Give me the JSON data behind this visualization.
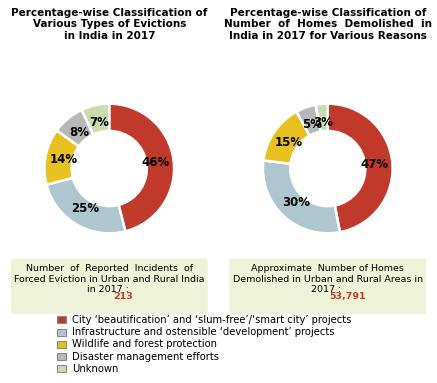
{
  "chart1": {
    "title": "Percentage-wise Classification of\nVarious Types of Evictions\nin India in 2017",
    "values": [
      46,
      25,
      14,
      8,
      7
    ],
    "labels": [
      "46%",
      "25%",
      "14%",
      "8%",
      "7%"
    ],
    "colors": [
      "#c0392b",
      "#aec6cf",
      "#e8c020",
      "#b8b8b8",
      "#c8ddb0"
    ],
    "caption_normal": "Number  of  Reported  Incidents  of\nForced Eviction in Urban and Rural India\nin 2017 : ",
    "caption_bold": "213"
  },
  "chart2": {
    "title": "Percentage-wise Classification of\nNumber  of  Homes  Demolished  in\nIndia in 2017 for Various Reasons",
    "values": [
      47,
      30,
      15,
      5,
      3
    ],
    "labels": [
      "47%",
      "30%",
      "15%",
      "5%",
      "3%"
    ],
    "colors": [
      "#c0392b",
      "#aec6cf",
      "#e8c020",
      "#b8b8b8",
      "#c8ddb0"
    ],
    "caption_normal": "Approximate  Number of Homes\nDemolished in Urban and Rural Areas in\n2017 : ",
    "caption_bold": "53,791"
  },
  "legend_items": [
    {
      "label": "City ‘beautification’ and ‘slum-free’/‘smart city’ projects",
      "color": "#c0392b"
    },
    {
      "label": "Infrastructure and ostensible ‘development’ projects",
      "color": "#aec6cf"
    },
    {
      "label": "Wildlife and forest protection",
      "color": "#e8c020"
    },
    {
      "label": "Disaster management efforts",
      "color": "#b8b8b8"
    },
    {
      "label": "Unknown",
      "color": "#c8ddb0"
    }
  ],
  "background_color": "#ffffff",
  "caption_bg_color": "#eef3d8",
  "title_fontsize": 7.5,
  "label_fontsize": 8.5,
  "caption_fontsize": 6.8,
  "legend_fontsize": 7.2
}
